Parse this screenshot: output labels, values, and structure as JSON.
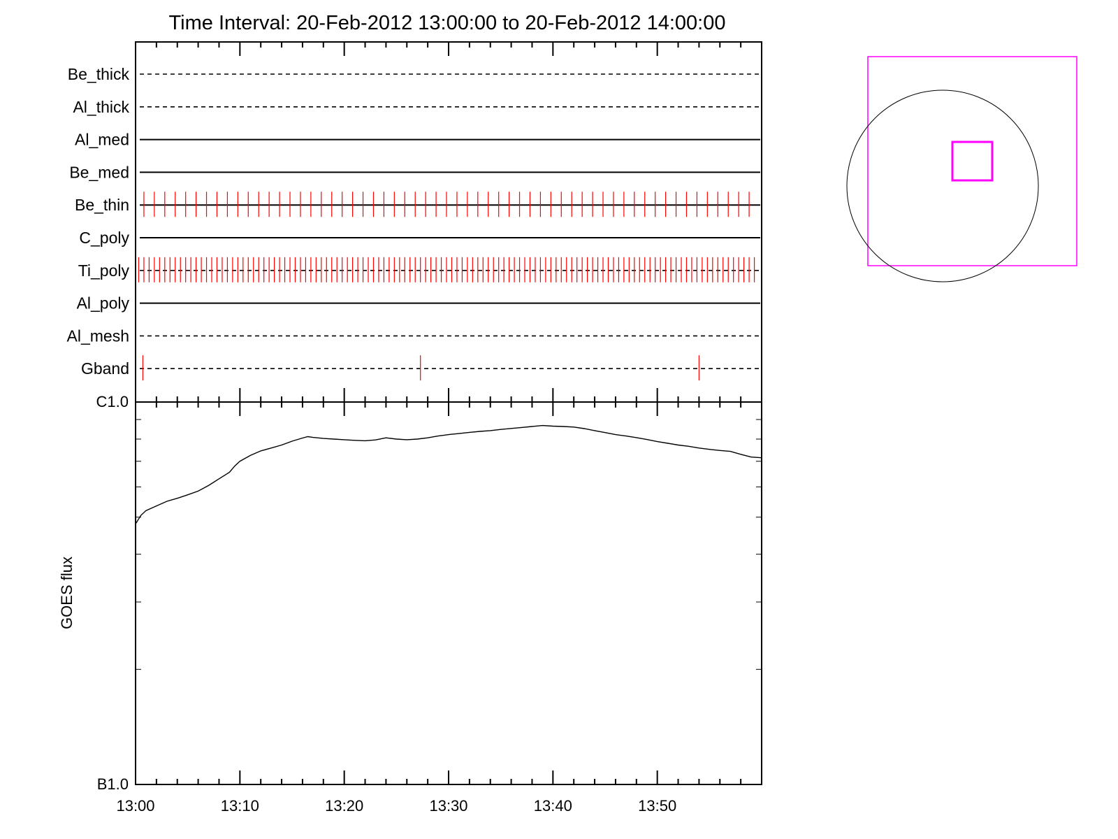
{
  "chart_data": {
    "type": "line",
    "title": "Time Interval: 20-Feb-2012 13:00:00 to 20-Feb-2012 14:00:00",
    "x_axis": {
      "unit": "minutes after 13:00",
      "range": [
        0,
        60
      ],
      "tick_values": [
        0,
        10,
        20,
        30,
        40,
        50
      ],
      "tick_labels": [
        "13:00",
        "13:10",
        "13:20",
        "13:30",
        "13:40",
        "13:50"
      ]
    },
    "filter_panel": {
      "filters": [
        {
          "name": "Be_thick",
          "line_style": "dashed",
          "switch_times": []
        },
        {
          "name": "Al_thick",
          "line_style": "dashed",
          "switch_times": []
        },
        {
          "name": "Al_med",
          "line_style": "solid",
          "switch_times": []
        },
        {
          "name": "Be_med",
          "line_style": "solid",
          "switch_times": []
        },
        {
          "name": "Be_thin",
          "line_style": "solid",
          "switch_interval": 1.0,
          "switch_start": 0.8,
          "switch_end": 59.6
        },
        {
          "name": "C_poly",
          "line_style": "solid",
          "switch_times": []
        },
        {
          "name": "Ti_poly",
          "line_style": "dashed",
          "switch_interval": 0.5,
          "switch_start": 0.3,
          "switch_end": 59.6
        },
        {
          "name": "Al_poly",
          "line_style": "solid",
          "switch_times": []
        },
        {
          "name": "Al_mesh",
          "line_style": "dashed",
          "switch_times": []
        },
        {
          "name": "Gband",
          "line_style": "dashed",
          "switch_times": [
            0.7,
            27.3,
            54.0
          ]
        }
      ],
      "switch_color": "#ff0000"
    },
    "goes_panel": {
      "ylabel": "GOES flux",
      "y_scale": "log",
      "y_range": [
        1e-07,
        1e-06
      ],
      "y_tick_values": [
        1e-06,
        1e-07
      ],
      "y_tick_labels": [
        "C1.0",
        "B1.0"
      ],
      "series": [
        {
          "line_color": "#000000",
          "x": [
            0,
            0.5,
            1,
            2,
            3,
            4,
            5,
            6,
            7,
            8,
            9,
            9.5,
            10,
            11,
            12,
            13,
            14,
            15,
            16,
            16.5,
            17,
            18,
            19,
            20,
            21,
            22,
            23,
            24,
            25,
            26,
            27,
            28,
            29,
            30,
            31,
            32,
            33,
            34,
            35,
            36,
            37,
            38,
            39,
            40,
            41,
            42,
            43,
            44,
            45,
            46,
            47,
            48,
            49,
            50,
            51,
            52,
            53,
            54,
            55,
            56,
            57,
            58,
            59,
            60
          ],
          "y": [
            4.8e-07,
            5.05e-07,
            5.2e-07,
            5.35e-07,
            5.5e-07,
            5.6e-07,
            5.72e-07,
            5.85e-07,
            6.05e-07,
            6.3e-07,
            6.55e-07,
            6.8e-07,
            7e-07,
            7.25e-07,
            7.45e-07,
            7.58e-07,
            7.72e-07,
            7.9e-07,
            8.05e-07,
            8.12e-07,
            8.08e-07,
            8.03e-07,
            8e-07,
            7.97e-07,
            7.94e-07,
            7.92e-07,
            7.96e-07,
            8.06e-07,
            8e-07,
            7.97e-07,
            8e-07,
            8.06e-07,
            8.15e-07,
            8.22e-07,
            8.27e-07,
            8.33e-07,
            8.38e-07,
            8.42e-07,
            8.48e-07,
            8.53e-07,
            8.58e-07,
            8.63e-07,
            8.68e-07,
            8.65e-07,
            8.63e-07,
            8.6e-07,
            8.52e-07,
            8.42e-07,
            8.32e-07,
            8.22e-07,
            8.15e-07,
            8.07e-07,
            7.98e-07,
            7.88e-07,
            7.8e-07,
            7.72e-07,
            7.66e-07,
            7.58e-07,
            7.52e-07,
            7.47e-07,
            7.43e-07,
            7.3e-07,
            7.18e-07,
            7.15e-07
          ]
        }
      ]
    }
  }
}
